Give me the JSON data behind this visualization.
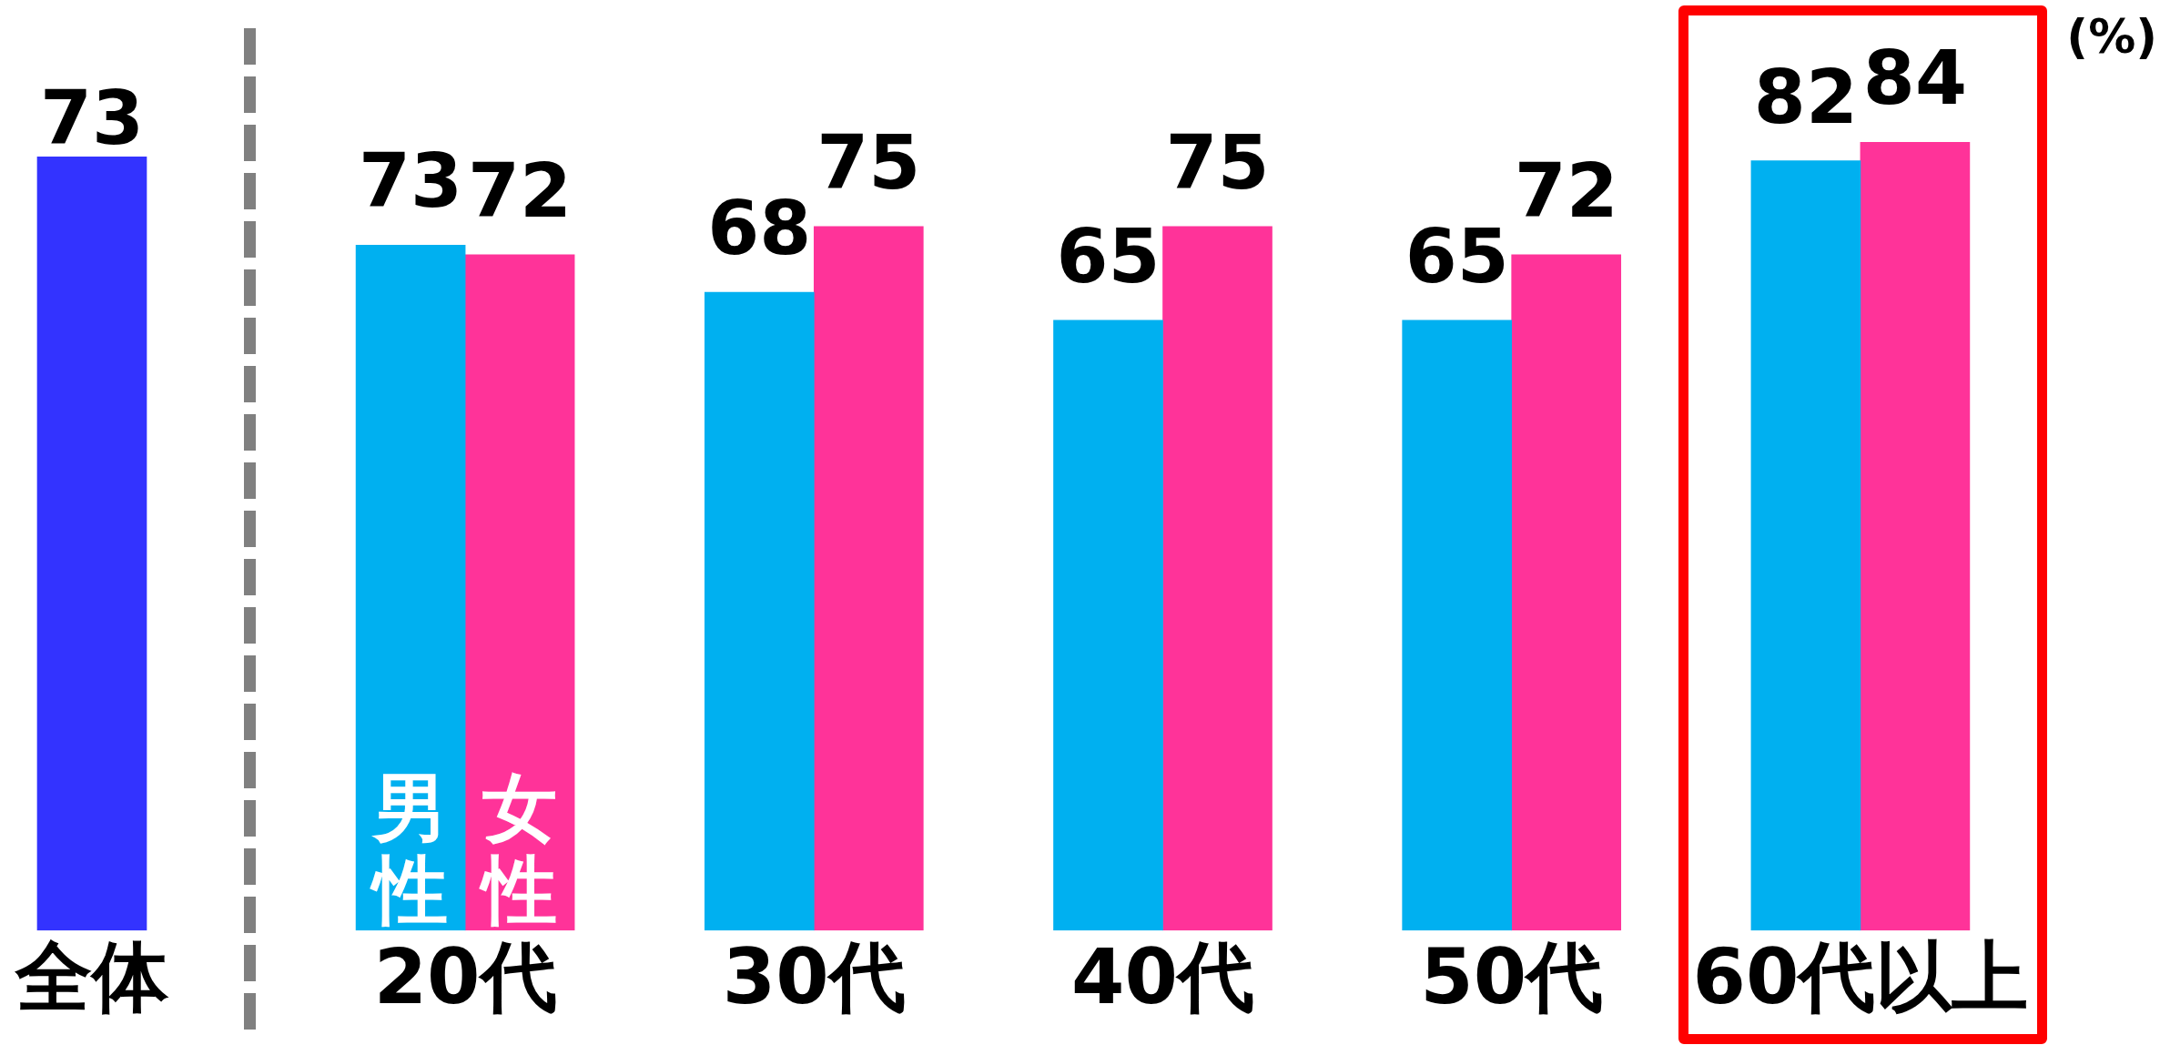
{
  "chart_data": [
    {
      "type": "bar",
      "categories": [
        "全体"
      ],
      "values": [
        73
      ],
      "color": "#3333ff",
      "data_labels": true
    },
    {
      "type": "bar",
      "categories": [
        "20代",
        "30代",
        "40代",
        "50代",
        "60代以上"
      ],
      "series": [
        {
          "name": "男性",
          "color": "#00b0f0",
          "values": [
            73,
            68,
            65,
            65,
            82
          ]
        },
        {
          "name": "女性",
          "color": "#ff3399",
          "values": [
            72,
            75,
            75,
            72,
            84
          ]
        }
      ],
      "data_labels": true,
      "annotations": [
        "(%)"
      ]
    }
  ]
}
